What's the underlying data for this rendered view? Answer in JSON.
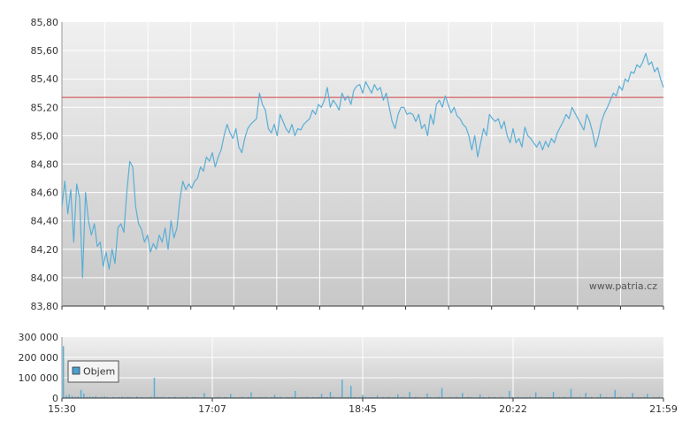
{
  "watermark": "www.patria.cz",
  "colors": {
    "price_line": "#5aaed6",
    "reference_line": "#d04040",
    "volume_bar": "#5aaed6",
    "grid": "#ffffff",
    "bg_top": "#f0f0f0",
    "bg_bottom": "#c8c8c8",
    "legend_swatch": "#4a9fd0"
  },
  "chart_data": [
    {
      "type": "line",
      "name": "price",
      "ylim": [
        83.8,
        85.8
      ],
      "y_ticks": [
        "83,80",
        "84,00",
        "84,20",
        "84,40",
        "84,60",
        "84,80",
        "85,00",
        "85,20",
        "85,40",
        "85,60",
        "85,80"
      ],
      "reference_value": 85.27,
      "grid": true,
      "series": [
        {
          "points": [
            [
              0,
              84.5
            ],
            [
              1,
              84.68
            ],
            [
              2,
              84.45
            ],
            [
              3,
              84.62
            ],
            [
              4,
              84.25
            ],
            [
              5,
              84.66
            ],
            [
              6,
              84.56
            ],
            [
              7,
              84.0
            ],
            [
              8,
              84.6
            ],
            [
              9,
              84.4
            ],
            [
              10,
              84.3
            ],
            [
              11,
              84.38
            ],
            [
              12,
              84.22
            ],
            [
              13,
              84.25
            ],
            [
              14,
              84.08
            ],
            [
              15,
              84.18
            ],
            [
              16,
              84.06
            ],
            [
              17,
              84.2
            ],
            [
              18,
              84.1
            ],
            [
              19,
              84.35
            ],
            [
              20,
              84.38
            ],
            [
              21,
              84.32
            ],
            [
              22,
              84.6
            ],
            [
              23,
              84.82
            ],
            [
              24,
              84.78
            ],
            [
              25,
              84.5
            ],
            [
              26,
              84.38
            ],
            [
              27,
              84.34
            ],
            [
              28,
              84.25
            ],
            [
              29,
              84.3
            ],
            [
              30,
              84.18
            ],
            [
              31,
              84.24
            ],
            [
              32,
              84.2
            ],
            [
              33,
              84.3
            ],
            [
              34,
              84.25
            ],
            [
              35,
              84.35
            ],
            [
              36,
              84.2
            ],
            [
              37,
              84.4
            ],
            [
              38,
              84.28
            ],
            [
              39,
              84.35
            ],
            [
              40,
              84.55
            ],
            [
              41,
              84.68
            ],
            [
              42,
              84.62
            ],
            [
              43,
              84.66
            ],
            [
              44,
              84.63
            ],
            [
              45,
              84.68
            ],
            [
              46,
              84.7
            ],
            [
              47,
              84.78
            ],
            [
              48,
              84.75
            ],
            [
              49,
              84.85
            ],
            [
              50,
              84.82
            ],
            [
              51,
              84.88
            ],
            [
              52,
              84.78
            ],
            [
              53,
              84.85
            ],
            [
              54,
              84.9
            ],
            [
              55,
              85.0
            ],
            [
              56,
              85.08
            ],
            [
              57,
              85.02
            ],
            [
              58,
              84.98
            ],
            [
              59,
              85.05
            ],
            [
              60,
              84.92
            ],
            [
              61,
              84.88
            ],
            [
              62,
              84.98
            ],
            [
              63,
              85.05
            ],
            [
              64,
              85.08
            ],
            [
              65,
              85.1
            ],
            [
              66,
              85.12
            ],
            [
              67,
              85.3
            ],
            [
              68,
              85.22
            ],
            [
              69,
              85.18
            ],
            [
              70,
              85.05
            ],
            [
              71,
              85.02
            ],
            [
              72,
              85.08
            ],
            [
              73,
              85.0
            ],
            [
              74,
              85.15
            ],
            [
              75,
              85.1
            ],
            [
              76,
              85.05
            ],
            [
              77,
              85.02
            ],
            [
              78,
              85.08
            ],
            [
              79,
              85.0
            ],
            [
              80,
              85.05
            ],
            [
              81,
              85.04
            ],
            [
              82,
              85.08
            ],
            [
              83,
              85.1
            ],
            [
              84,
              85.12
            ],
            [
              85,
              85.18
            ],
            [
              86,
              85.15
            ],
            [
              87,
              85.22
            ],
            [
              88,
              85.2
            ],
            [
              89,
              85.25
            ],
            [
              90,
              85.34
            ],
            [
              91,
              85.2
            ],
            [
              92,
              85.25
            ],
            [
              93,
              85.22
            ],
            [
              94,
              85.18
            ],
            [
              95,
              85.3
            ],
            [
              96,
              85.25
            ],
            [
              97,
              85.28
            ],
            [
              98,
              85.22
            ],
            [
              99,
              85.32
            ],
            [
              100,
              85.35
            ],
            [
              101,
              85.36
            ],
            [
              102,
              85.3
            ],
            [
              103,
              85.38
            ],
            [
              104,
              85.34
            ],
            [
              105,
              85.3
            ],
            [
              106,
              85.36
            ],
            [
              107,
              85.32
            ],
            [
              108,
              85.34
            ],
            [
              109,
              85.25
            ],
            [
              110,
              85.3
            ],
            [
              111,
              85.2
            ],
            [
              112,
              85.1
            ],
            [
              113,
              85.05
            ],
            [
              114,
              85.15
            ],
            [
              115,
              85.2
            ],
            [
              116,
              85.2
            ],
            [
              117,
              85.15
            ],
            [
              118,
              85.16
            ],
            [
              119,
              85.15
            ],
            [
              120,
              85.1
            ],
            [
              121,
              85.15
            ],
            [
              122,
              85.05
            ],
            [
              123,
              85.08
            ],
            [
              124,
              85.0
            ],
            [
              125,
              85.15
            ],
            [
              126,
              85.08
            ],
            [
              127,
              85.22
            ],
            [
              128,
              85.25
            ],
            [
              129,
              85.2
            ],
            [
              130,
              85.28
            ],
            [
              131,
              85.22
            ],
            [
              132,
              85.16
            ],
            [
              133,
              85.2
            ],
            [
              134,
              85.14
            ],
            [
              135,
              85.12
            ],
            [
              136,
              85.08
            ],
            [
              137,
              85.06
            ],
            [
              138,
              85.0
            ],
            [
              139,
              84.9
            ],
            [
              140,
              85.0
            ],
            [
              141,
              84.85
            ],
            [
              142,
              84.95
            ],
            [
              143,
              85.05
            ],
            [
              144,
              85.0
            ],
            [
              145,
              85.15
            ],
            [
              146,
              85.12
            ],
            [
              147,
              85.1
            ],
            [
              148,
              85.12
            ],
            [
              149,
              85.05
            ],
            [
              150,
              85.1
            ],
            [
              151,
              85.0
            ],
            [
              152,
              84.95
            ],
            [
              153,
              85.05
            ],
            [
              154,
              84.95
            ],
            [
              155,
              84.98
            ],
            [
              156,
              84.92
            ],
            [
              157,
              85.06
            ],
            [
              158,
              85.0
            ],
            [
              159,
              84.98
            ],
            [
              160,
              84.95
            ],
            [
              161,
              84.92
            ],
            [
              162,
              84.96
            ],
            [
              163,
              84.9
            ],
            [
              164,
              84.96
            ],
            [
              165,
              84.92
            ],
            [
              166,
              84.98
            ],
            [
              167,
              84.95
            ],
            [
              168,
              85.02
            ],
            [
              169,
              85.06
            ],
            [
              170,
              85.1
            ],
            [
              171,
              85.15
            ],
            [
              172,
              85.12
            ],
            [
              173,
              85.2
            ],
            [
              174,
              85.16
            ],
            [
              175,
              85.12
            ],
            [
              176,
              85.08
            ],
            [
              177,
              85.04
            ],
            [
              178,
              85.15
            ],
            [
              179,
              85.1
            ],
            [
              180,
              85.02
            ],
            [
              181,
              84.92
            ],
            [
              182,
              85.0
            ],
            [
              183,
              85.1
            ],
            [
              184,
              85.16
            ],
            [
              185,
              85.2
            ],
            [
              186,
              85.25
            ],
            [
              187,
              85.3
            ],
            [
              188,
              85.28
            ],
            [
              189,
              85.35
            ],
            [
              190,
              85.32
            ],
            [
              191,
              85.4
            ],
            [
              192,
              85.38
            ],
            [
              193,
              85.45
            ],
            [
              194,
              85.44
            ],
            [
              195,
              85.5
            ],
            [
              196,
              85.48
            ],
            [
              197,
              85.52
            ],
            [
              198,
              85.58
            ],
            [
              199,
              85.5
            ],
            [
              200,
              85.52
            ],
            [
              201,
              85.45
            ],
            [
              202,
              85.48
            ],
            [
              203,
              85.4
            ],
            [
              204,
              85.34
            ]
          ]
        }
      ]
    },
    {
      "type": "bar",
      "name": "volume",
      "legend": [
        "Objem"
      ],
      "legend_position": "top-left",
      "ylim": [
        0,
        300000
      ],
      "y_ticks": [
        "0",
        "100 000",
        "200 000",
        "300 000"
      ],
      "x_ticks": [
        "15:30",
        "17:07",
        "18:45",
        "20:22",
        "21:59"
      ],
      "values": [
        255000,
        12000,
        18000,
        9000,
        6000,
        8000,
        40000,
        22000,
        5000,
        7000,
        6000,
        9000,
        4000,
        6000,
        8000,
        5000,
        3000,
        6000,
        4000,
        5000,
        7000,
        4000,
        6000,
        5000,
        3000,
        8000,
        4000,
        5000,
        3000,
        4000,
        6000,
        100000,
        5000,
        4000,
        6000,
        3000,
        5000,
        4000,
        6000,
        3000,
        5000,
        4000,
        7000,
        3000,
        5000,
        6000,
        4000,
        3000,
        25000,
        4000,
        5000,
        3000,
        4000,
        6000,
        3000,
        5000,
        4000,
        20000,
        5000,
        3000,
        4000,
        6000,
        3000,
        5000,
        28000,
        4000,
        3000,
        5000,
        4000,
        6000,
        3000,
        5000,
        15000,
        4000,
        6000,
        3000,
        5000,
        4000,
        6000,
        35000,
        3000,
        5000,
        4000,
        6000,
        3000,
        5000,
        4000,
        6000,
        20000,
        5000,
        4000,
        30000,
        6000,
        3000,
        5000,
        90000,
        4000,
        6000,
        60000,
        5000,
        3000,
        4000,
        15000,
        6000,
        3000,
        5000,
        4000,
        12000,
        3000,
        5000,
        4000,
        6000,
        3000,
        5000,
        18000,
        4000,
        6000,
        3000,
        30000,
        4000,
        6000,
        5000,
        3000,
        4000,
        22000,
        5000,
        3000,
        4000,
        6000,
        50000,
        4000,
        3000,
        5000,
        4000,
        6000,
        3000,
        25000,
        4000,
        6000,
        5000,
        3000,
        4000,
        18000,
        5000,
        3000,
        6000,
        4000,
        5000,
        3000,
        6000,
        4000,
        3000,
        35000,
        5000,
        4000,
        6000,
        3000,
        5000,
        4000,
        6000,
        3000,
        28000,
        4000,
        6000,
        3000,
        5000,
        4000,
        30000,
        3000,
        5000,
        4000,
        6000,
        3000,
        45000,
        5000,
        4000,
        6000,
        3000,
        25000,
        4000,
        6000,
        3000,
        5000,
        20000,
        4000,
        6000,
        3000,
        5000,
        40000,
        4000,
        6000,
        3000,
        5000,
        4000,
        25000,
        3000,
        5000,
        4000,
        6000,
        20000,
        3000,
        5000,
        4000,
        6000,
        3000
      ]
    }
  ]
}
